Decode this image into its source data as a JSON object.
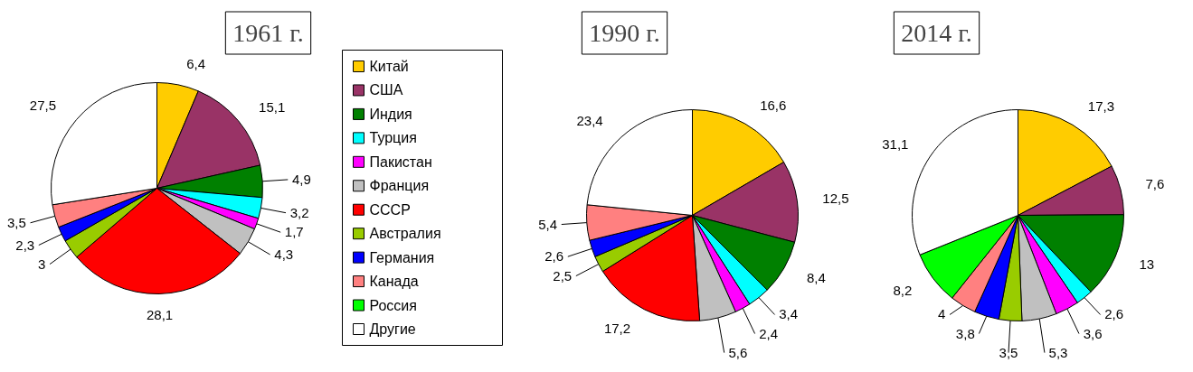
{
  "chart_data": [
    {
      "type": "pie",
      "title": "1961 г.",
      "legend": "right",
      "categories": [
        "Китай",
        "США",
        "Индия",
        "Турция",
        "Пакистан",
        "Франция",
        "СССР",
        "Австралия",
        "Германия",
        "Канада",
        "Россия",
        "Другие"
      ],
      "colors": [
        "#ffcc00",
        "#993366",
        "#008000",
        "#00ffff",
        "#ff00ff",
        "#c0c0c0",
        "#ff0000",
        "#99cc00",
        "#0000ff",
        "#ff8080",
        "#00ff00",
        "#ffffff"
      ],
      "values": [
        6.4,
        15.1,
        4.9,
        3.2,
        1.7,
        4.3,
        28.1,
        3,
        2.3,
        3.5,
        null,
        27.5
      ],
      "value_labels": [
        "6,4",
        "15,1",
        "4,9",
        "3,2",
        "1,7",
        "4,3",
        "28,1",
        "3",
        "2,3",
        "3,5",
        null,
        "27,5"
      ]
    },
    {
      "type": "pie",
      "title": "1990 г.",
      "categories": [
        null,
        null,
        null,
        null,
        null,
        null,
        null,
        null,
        null,
        null,
        null,
        null
      ],
      "colors": [
        "#ffcc00",
        "#993366",
        "#008000",
        "#00ffff",
        "#ff00ff",
        "#c0c0c0",
        "#ff0000",
        "#99cc00",
        "#0000ff",
        "#ff8080",
        "#00ff00",
        "#ffffff"
      ],
      "values": [
        16.6,
        12.5,
        8.4,
        3.4,
        2.4,
        5.6,
        17.2,
        2.5,
        2.6,
        5.4,
        null,
        23.4
      ],
      "value_labels": [
        "16,6",
        "12,5",
        "8,4",
        "3,4",
        "2,4",
        "5,6",
        "17,2",
        "2,5",
        "2,6",
        "5,4",
        null,
        "23,4"
      ]
    },
    {
      "type": "pie",
      "title": "2014 г.",
      "categories": [
        null,
        null,
        null,
        null,
        null,
        null,
        null,
        null,
        null,
        null,
        null,
        null
      ],
      "colors": [
        "#ffcc00",
        "#993366",
        "#008000",
        "#00ffff",
        "#ff00ff",
        "#c0c0c0",
        "#ff0000",
        "#99cc00",
        "#0000ff",
        "#ff8080",
        "#00ff00",
        "#ffffff"
      ],
      "values": [
        17.3,
        7.6,
        13,
        2.6,
        3.6,
        5.3,
        null,
        3.5,
        3.8,
        4,
        8.2,
        31.1
      ],
      "value_labels": [
        "17,3",
        "7,6",
        "13",
        "2,6",
        "3,6",
        "5,3",
        null,
        "3,5",
        "3,8",
        "4",
        "8,2",
        "31,1"
      ]
    }
  ]
}
